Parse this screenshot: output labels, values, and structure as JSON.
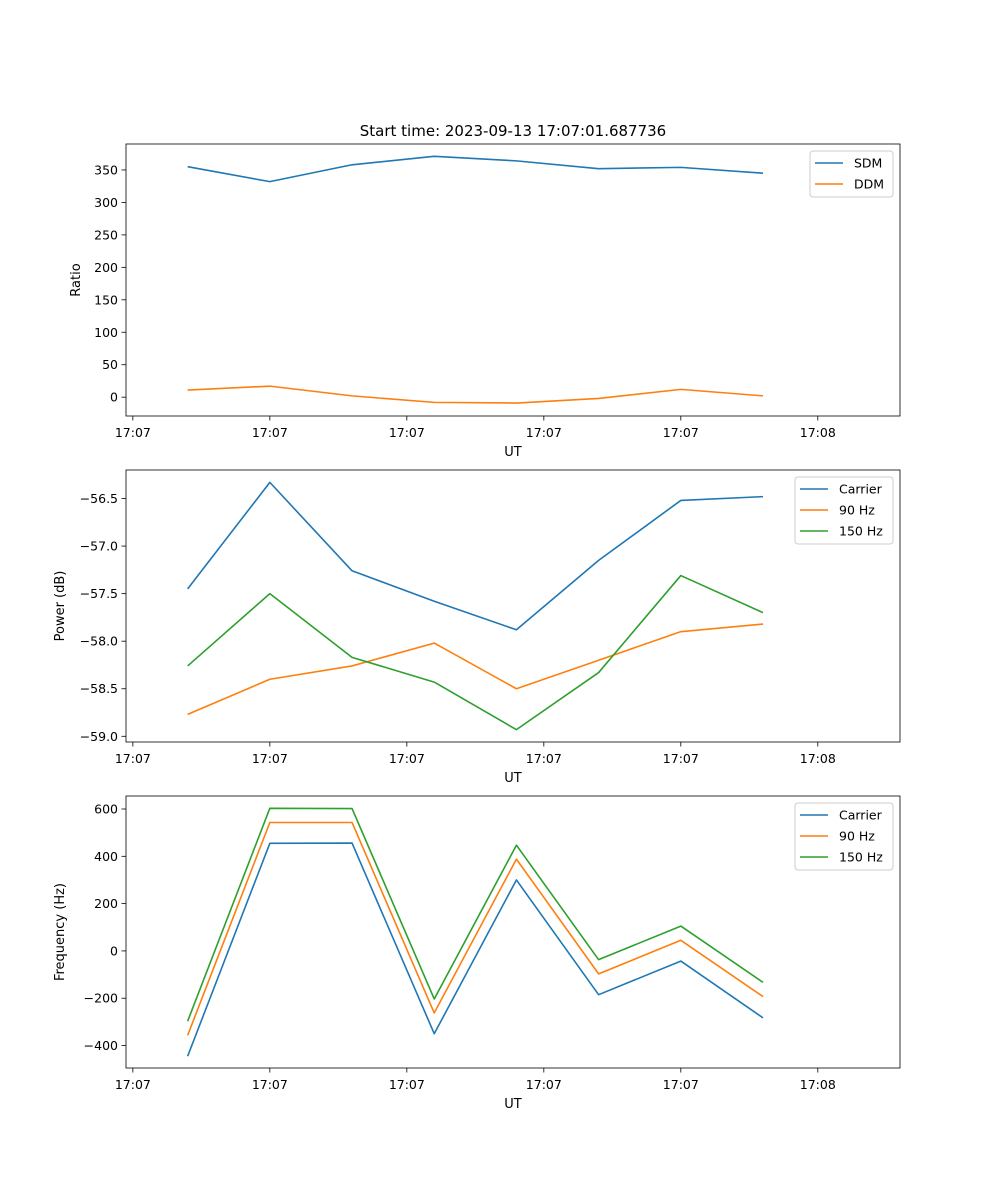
{
  "figure_title": "Start time: 2023-09-13 17:07:01.687736",
  "colors": {
    "blue": "#1f77b4",
    "orange": "#ff7f0e",
    "green": "#2ca02c"
  },
  "chart_data": [
    {
      "type": "line",
      "title": "Start time: 2023-09-13 17:07:01.687736",
      "xlabel": "UT",
      "ylabel": "Ratio",
      "x": [
        0.4,
        1.0,
        1.6,
        2.2,
        2.8,
        3.4,
        4.0,
        4.6
      ],
      "xlim": [
        -0.05,
        5.6
      ],
      "x_ticks": [
        0,
        1,
        2,
        3,
        4,
        5
      ],
      "x_tick_labels": [
        "17:07",
        "17:07",
        "17:07",
        "17:07",
        "17:07",
        "17:08"
      ],
      "ylim": [
        -29,
        390
      ],
      "y_ticks": [
        0,
        50,
        100,
        150,
        200,
        250,
        300,
        350
      ],
      "y_tick_labels": [
        "0",
        "50",
        "100",
        "150",
        "200",
        "250",
        "300",
        "350"
      ],
      "legend": "top-right",
      "series": [
        {
          "name": "SDM",
          "color": "#1f77b4",
          "values": [
            355,
            332,
            358,
            371,
            364,
            352,
            354,
            345
          ]
        },
        {
          "name": "DDM",
          "color": "#ff7f0e",
          "values": [
            11,
            17,
            2,
            -8,
            -9,
            -2,
            12,
            2
          ]
        }
      ]
    },
    {
      "type": "line",
      "title": "",
      "xlabel": "UT",
      "ylabel": "Power (dB)",
      "x": [
        0.4,
        1.0,
        1.6,
        2.2,
        2.8,
        3.4,
        4.0,
        4.6
      ],
      "xlim": [
        -0.05,
        5.6
      ],
      "x_ticks": [
        0,
        1,
        2,
        3,
        4,
        5
      ],
      "x_tick_labels": [
        "17:07",
        "17:07",
        "17:07",
        "17:07",
        "17:07",
        "17:08"
      ],
      "ylim": [
        -59.06,
        -56.2
      ],
      "y_ticks": [
        -59.0,
        -58.5,
        -58.0,
        -57.5,
        -57.0,
        -56.5
      ],
      "y_tick_labels": [
        "−59.0",
        "−58.5",
        "−58.0",
        "−57.5",
        "−57.0",
        "−56.5"
      ],
      "legend": "top-right",
      "series": [
        {
          "name": "Carrier",
          "color": "#1f77b4",
          "values": [
            -57.45,
            -56.33,
            -57.26,
            -57.58,
            -57.88,
            -57.15,
            -56.52,
            -56.48
          ]
        },
        {
          "name": "90 Hz",
          "color": "#ff7f0e",
          "values": [
            -58.77,
            -58.4,
            -58.26,
            -58.02,
            -58.5,
            -58.2,
            -57.9,
            -57.82
          ]
        },
        {
          "name": "150 Hz",
          "color": "#2ca02c",
          "values": [
            -58.26,
            -57.5,
            -58.17,
            -58.43,
            -58.93,
            -58.33,
            -57.31,
            -57.7
          ]
        }
      ]
    },
    {
      "type": "line",
      "title": "",
      "xlabel": "UT",
      "ylabel": "Frequency (Hz)",
      "x": [
        0.4,
        1.0,
        1.6,
        2.2,
        2.8,
        3.4,
        4.0,
        4.6
      ],
      "xlim": [
        -0.05,
        5.6
      ],
      "x_ticks": [
        0,
        1,
        2,
        3,
        4,
        5
      ],
      "x_tick_labels": [
        "17:07",
        "17:07",
        "17:07",
        "17:07",
        "17:07",
        "17:08"
      ],
      "ylim": [
        -495,
        655
      ],
      "y_ticks": [
        -400,
        -200,
        0,
        200,
        400,
        600
      ],
      "y_tick_labels": [
        "−400",
        "−200",
        "0",
        "200",
        "400",
        "600"
      ],
      "legend": "top-right",
      "series": [
        {
          "name": "Carrier",
          "color": "#1f77b4",
          "values": [
            -445,
            455,
            456,
            -350,
            300,
            -185,
            -43,
            -283
          ]
        },
        {
          "name": "90 Hz",
          "color": "#ff7f0e",
          "values": [
            -357,
            543,
            543,
            -262,
            388,
            -97,
            45,
            -193
          ]
        },
        {
          "name": "150 Hz",
          "color": "#2ca02c",
          "values": [
            -297,
            603,
            602,
            -203,
            447,
            -37,
            105,
            -133
          ]
        }
      ]
    }
  ]
}
